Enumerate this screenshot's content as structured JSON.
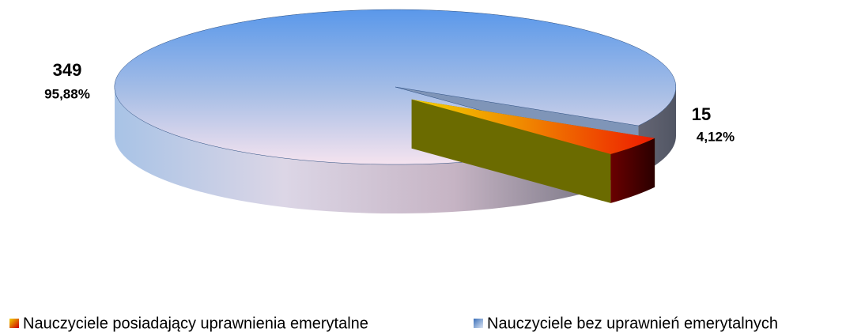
{
  "chart_data": {
    "type": "pie",
    "categories": [
      "Nauczyciele posiadający uprawnienia emerytalne",
      "Nauczyciele bez uprawnień emerytalnych"
    ],
    "values": [
      15,
      349
    ],
    "percentages": [
      4.12,
      95.88
    ],
    "percentage_labels": [
      "4,12%",
      "95,88%"
    ],
    "colors": [
      "#e03010",
      "#7aa6e0"
    ],
    "legend": "bottom"
  }
}
